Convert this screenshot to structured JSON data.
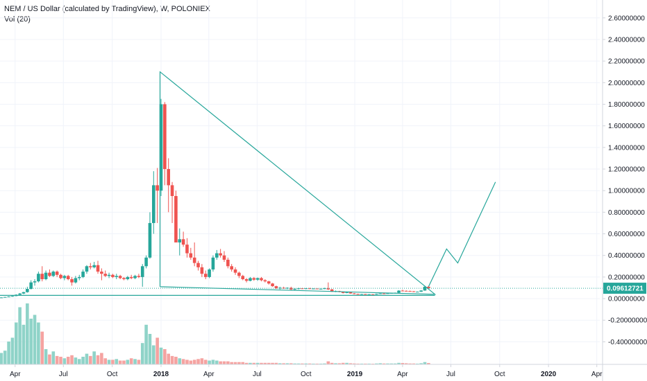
{
  "legend": {
    "title": "NEM / US Dollar (calculated by TradingView), W, POLONIEX",
    "volume": "Vol (20)"
  },
  "colors": {
    "up": "#26a69a",
    "down": "#ef5350",
    "volume_up": "#8fd3c8",
    "volume_down": "#f5a3a1",
    "drawing": "#26a69a",
    "price_line": "#26a69a",
    "grid": "#f0f3fa",
    "axis_text": "#131722"
  },
  "chart_data": {
    "type": "candlestick",
    "symbol": "NEM / US Dollar",
    "interval": "W",
    "exchange": "POLONIEX",
    "ylim": [
      -0.5,
      2.65
    ],
    "y_ticks": [
      "2.60000000",
      "2.40000000",
      "2.20000000",
      "2.00000000",
      "1.80000000",
      "1.60000000",
      "1.40000000",
      "1.20000000",
      "1.00000000",
      "0.80000000",
      "0.60000000",
      "0.40000000",
      "0.20000000",
      "0.00000000",
      "-0.20000000",
      "-0.40000000"
    ],
    "x_labels": [
      {
        "label": "Apr",
        "date": "2017-04-01",
        "bold": false
      },
      {
        "label": "Jul",
        "date": "2017-07-01",
        "bold": false
      },
      {
        "label": "Oct",
        "date": "2017-10-01",
        "bold": false
      },
      {
        "label": "2018",
        "date": "2018-01-01",
        "bold": true
      },
      {
        "label": "Apr",
        "date": "2018-04-01",
        "bold": false
      },
      {
        "label": "Jul",
        "date": "2018-07-01",
        "bold": false
      },
      {
        "label": "Oct",
        "date": "2018-10-01",
        "bold": false
      },
      {
        "label": "2019",
        "date": "2019-01-01",
        "bold": true
      },
      {
        "label": "Apr",
        "date": "2019-04-01",
        "bold": false
      },
      {
        "label": "Jul",
        "date": "2019-07-01",
        "bold": false
      },
      {
        "label": "Oct",
        "date": "2019-10-01",
        "bold": false
      },
      {
        "label": "2020",
        "date": "2020-01-01",
        "bold": true
      },
      {
        "label": "Apr",
        "date": "2020-04-01",
        "bold": false
      }
    ],
    "current_price": "0.09612721",
    "current_price_value": 0.0961,
    "candles": [
      {
        "date": "2017-02-13",
        "o": 0.005,
        "h": 0.006,
        "l": 0.004,
        "c": 0.006,
        "v": 0.06
      },
      {
        "date": "2017-02-20",
        "o": 0.006,
        "h": 0.007,
        "l": 0.005,
        "c": 0.006,
        "v": 0.05
      },
      {
        "date": "2017-02-27",
        "o": 0.006,
        "h": 0.009,
        "l": 0.006,
        "c": 0.008,
        "v": 0.1
      },
      {
        "date": "2017-03-06",
        "o": 0.008,
        "h": 0.012,
        "l": 0.007,
        "c": 0.011,
        "v": 0.15
      },
      {
        "date": "2017-03-13",
        "o": 0.011,
        "h": 0.016,
        "l": 0.01,
        "c": 0.015,
        "v": 0.18
      },
      {
        "date": "2017-03-20",
        "o": 0.015,
        "h": 0.022,
        "l": 0.013,
        "c": 0.019,
        "v": 0.3
      },
      {
        "date": "2017-03-27",
        "o": 0.019,
        "h": 0.028,
        "l": 0.017,
        "c": 0.024,
        "v": 0.35
      },
      {
        "date": "2017-04-03",
        "o": 0.024,
        "h": 0.04,
        "l": 0.022,
        "c": 0.036,
        "v": 0.55
      },
      {
        "date": "2017-04-10",
        "o": 0.036,
        "h": 0.052,
        "l": 0.033,
        "c": 0.047,
        "v": 0.75
      },
      {
        "date": "2017-04-17",
        "o": 0.047,
        "h": 0.063,
        "l": 0.042,
        "c": 0.06,
        "v": 0.52
      },
      {
        "date": "2017-04-24",
        "o": 0.06,
        "h": 0.11,
        "l": 0.055,
        "c": 0.09,
        "v": 0.8
      },
      {
        "date": "2017-05-01",
        "o": 0.09,
        "h": 0.17,
        "l": 0.085,
        "c": 0.15,
        "v": 0.6
      },
      {
        "date": "2017-05-08",
        "o": 0.15,
        "h": 0.18,
        "l": 0.12,
        "c": 0.16,
        "v": 0.65
      },
      {
        "date": "2017-05-15",
        "o": 0.16,
        "h": 0.25,
        "l": 0.15,
        "c": 0.23,
        "v": 0.55
      },
      {
        "date": "2017-05-22",
        "o": 0.23,
        "h": 0.3,
        "l": 0.16,
        "c": 0.18,
        "v": 0.43
      },
      {
        "date": "2017-05-29",
        "o": 0.18,
        "h": 0.26,
        "l": 0.17,
        "c": 0.24,
        "v": 0.2
      },
      {
        "date": "2017-06-05",
        "o": 0.24,
        "h": 0.27,
        "l": 0.2,
        "c": 0.21,
        "v": 0.13
      },
      {
        "date": "2017-06-12",
        "o": 0.21,
        "h": 0.26,
        "l": 0.2,
        "c": 0.25,
        "v": 0.17
      },
      {
        "date": "2017-06-19",
        "o": 0.25,
        "h": 0.26,
        "l": 0.2,
        "c": 0.22,
        "v": 0.11
      },
      {
        "date": "2017-06-26",
        "o": 0.22,
        "h": 0.23,
        "l": 0.18,
        "c": 0.19,
        "v": 0.1
      },
      {
        "date": "2017-07-03",
        "o": 0.19,
        "h": 0.22,
        "l": 0.17,
        "c": 0.21,
        "v": 0.08
      },
      {
        "date": "2017-07-10",
        "o": 0.21,
        "h": 0.22,
        "l": 0.17,
        "c": 0.18,
        "v": 0.1
      },
      {
        "date": "2017-07-17",
        "o": 0.18,
        "h": 0.2,
        "l": 0.12,
        "c": 0.15,
        "v": 0.12
      },
      {
        "date": "2017-07-24",
        "o": 0.15,
        "h": 0.21,
        "l": 0.14,
        "c": 0.19,
        "v": 0.09
      },
      {
        "date": "2017-07-31",
        "o": 0.19,
        "h": 0.22,
        "l": 0.17,
        "c": 0.2,
        "v": 0.07
      },
      {
        "date": "2017-08-07",
        "o": 0.2,
        "h": 0.27,
        "l": 0.19,
        "c": 0.25,
        "v": 0.1
      },
      {
        "date": "2017-08-14",
        "o": 0.25,
        "h": 0.31,
        "l": 0.23,
        "c": 0.3,
        "v": 0.14
      },
      {
        "date": "2017-08-21",
        "o": 0.3,
        "h": 0.33,
        "l": 0.27,
        "c": 0.29,
        "v": 0.11
      },
      {
        "date": "2017-08-28",
        "o": 0.29,
        "h": 0.34,
        "l": 0.28,
        "c": 0.31,
        "v": 0.17
      },
      {
        "date": "2017-09-04",
        "o": 0.31,
        "h": 0.35,
        "l": 0.23,
        "c": 0.25,
        "v": 0.12
      },
      {
        "date": "2017-09-11",
        "o": 0.25,
        "h": 0.28,
        "l": 0.17,
        "c": 0.23,
        "v": 0.15
      },
      {
        "date": "2017-09-18",
        "o": 0.23,
        "h": 0.26,
        "l": 0.2,
        "c": 0.21,
        "v": 0.08
      },
      {
        "date": "2017-09-25",
        "o": 0.21,
        "h": 0.24,
        "l": 0.19,
        "c": 0.22,
        "v": 0.06
      },
      {
        "date": "2017-10-02",
        "o": 0.22,
        "h": 0.23,
        "l": 0.19,
        "c": 0.2,
        "v": 0.06
      },
      {
        "date": "2017-10-09",
        "o": 0.2,
        "h": 0.23,
        "l": 0.18,
        "c": 0.21,
        "v": 0.07
      },
      {
        "date": "2017-10-16",
        "o": 0.21,
        "h": 0.22,
        "l": 0.18,
        "c": 0.19,
        "v": 0.05
      },
      {
        "date": "2017-10-23",
        "o": 0.19,
        "h": 0.2,
        "l": 0.17,
        "c": 0.18,
        "v": 0.05
      },
      {
        "date": "2017-10-30",
        "o": 0.18,
        "h": 0.21,
        "l": 0.17,
        "c": 0.2,
        "v": 0.06
      },
      {
        "date": "2017-11-06",
        "o": 0.2,
        "h": 0.22,
        "l": 0.18,
        "c": 0.19,
        "v": 0.08
      },
      {
        "date": "2017-11-13",
        "o": 0.19,
        "h": 0.22,
        "l": 0.18,
        "c": 0.21,
        "v": 0.07
      },
      {
        "date": "2017-11-20",
        "o": 0.21,
        "h": 0.23,
        "l": 0.19,
        "c": 0.2,
        "v": 0.06
      },
      {
        "date": "2017-11-27",
        "o": 0.2,
        "h": 0.32,
        "l": 0.11,
        "c": 0.3,
        "v": 0.28
      },
      {
        "date": "2017-12-04",
        "o": 0.3,
        "h": 0.4,
        "l": 0.28,
        "c": 0.38,
        "v": 0.52
      },
      {
        "date": "2017-12-11",
        "o": 0.38,
        "h": 0.8,
        "l": 0.37,
        "c": 0.7,
        "v": 0.4
      },
      {
        "date": "2017-12-18",
        "o": 0.7,
        "h": 1.18,
        "l": 0.6,
        "c": 1.05,
        "v": 0.25
      },
      {
        "date": "2017-12-25",
        "o": 1.05,
        "h": 1.21,
        "l": 0.7,
        "c": 1.0,
        "v": 0.35
      },
      {
        "date": "2018-01-01",
        "o": 1.0,
        "h": 1.85,
        "l": 0.95,
        "c": 1.8,
        "v": 0.22
      },
      {
        "date": "2018-01-08",
        "o": 1.8,
        "h": 1.82,
        "l": 1.05,
        "c": 1.2,
        "v": 0.2
      },
      {
        "date": "2018-01-15",
        "o": 1.2,
        "h": 1.3,
        "l": 0.8,
        "c": 1.05,
        "v": 0.14
      },
      {
        "date": "2018-01-22",
        "o": 1.05,
        "h": 1.08,
        "l": 0.7,
        "c": 0.95,
        "v": 0.11
      },
      {
        "date": "2018-01-29",
        "o": 0.95,
        "h": 1.0,
        "l": 0.55,
        "c": 0.52,
        "v": 0.1
      },
      {
        "date": "2018-02-05",
        "o": 0.52,
        "h": 0.65,
        "l": 0.4,
        "c": 0.55,
        "v": 0.08
      },
      {
        "date": "2018-02-12",
        "o": 0.55,
        "h": 0.62,
        "l": 0.48,
        "c": 0.5,
        "v": 0.07
      },
      {
        "date": "2018-02-19",
        "o": 0.5,
        "h": 0.56,
        "l": 0.38,
        "c": 0.42,
        "v": 0.06
      },
      {
        "date": "2018-02-26",
        "o": 0.42,
        "h": 0.47,
        "l": 0.36,
        "c": 0.38,
        "v": 0.05
      },
      {
        "date": "2018-03-05",
        "o": 0.38,
        "h": 0.52,
        "l": 0.3,
        "c": 0.33,
        "v": 0.06
      },
      {
        "date": "2018-03-12",
        "o": 0.33,
        "h": 0.35,
        "l": 0.26,
        "c": 0.29,
        "v": 0.07
      },
      {
        "date": "2018-03-19",
        "o": 0.29,
        "h": 0.32,
        "l": 0.2,
        "c": 0.23,
        "v": 0.08
      },
      {
        "date": "2018-03-26",
        "o": 0.23,
        "h": 0.26,
        "l": 0.18,
        "c": 0.2,
        "v": 0.06
      },
      {
        "date": "2018-04-02",
        "o": 0.2,
        "h": 0.28,
        "l": 0.19,
        "c": 0.27,
        "v": 0.05
      },
      {
        "date": "2018-04-09",
        "o": 0.27,
        "h": 0.4,
        "l": 0.25,
        "c": 0.38,
        "v": 0.06
      },
      {
        "date": "2018-04-16",
        "o": 0.38,
        "h": 0.45,
        "l": 0.36,
        "c": 0.42,
        "v": 0.05
      },
      {
        "date": "2018-04-23",
        "o": 0.42,
        "h": 0.46,
        "l": 0.38,
        "c": 0.4,
        "v": 0.04
      },
      {
        "date": "2018-04-30",
        "o": 0.4,
        "h": 0.44,
        "l": 0.34,
        "c": 0.36,
        "v": 0.04
      },
      {
        "date": "2018-05-07",
        "o": 0.36,
        "h": 0.38,
        "l": 0.28,
        "c": 0.3,
        "v": 0.04
      },
      {
        "date": "2018-05-14",
        "o": 0.3,
        "h": 0.32,
        "l": 0.25,
        "c": 0.27,
        "v": 0.03
      },
      {
        "date": "2018-05-21",
        "o": 0.27,
        "h": 0.29,
        "l": 0.22,
        "c": 0.24,
        "v": 0.03
      },
      {
        "date": "2018-05-28",
        "o": 0.24,
        "h": 0.25,
        "l": 0.19,
        "c": 0.21,
        "v": 0.03
      },
      {
        "date": "2018-06-04",
        "o": 0.21,
        "h": 0.22,
        "l": 0.17,
        "c": 0.18,
        "v": 0.03
      },
      {
        "date": "2018-06-11",
        "o": 0.18,
        "h": 0.19,
        "l": 0.15,
        "c": 0.165,
        "v": 0.02
      },
      {
        "date": "2018-06-18",
        "o": 0.165,
        "h": 0.2,
        "l": 0.16,
        "c": 0.19,
        "v": 0.02
      },
      {
        "date": "2018-06-25",
        "o": 0.19,
        "h": 0.2,
        "l": 0.165,
        "c": 0.175,
        "v": 0.02
      },
      {
        "date": "2018-07-02",
        "o": 0.175,
        "h": 0.195,
        "l": 0.165,
        "c": 0.19,
        "v": 0.02
      },
      {
        "date": "2018-07-09",
        "o": 0.19,
        "h": 0.2,
        "l": 0.16,
        "c": 0.17,
        "v": 0.02
      },
      {
        "date": "2018-07-16",
        "o": 0.17,
        "h": 0.18,
        "l": 0.15,
        "c": 0.16,
        "v": 0.02
      },
      {
        "date": "2018-07-23",
        "o": 0.16,
        "h": 0.165,
        "l": 0.13,
        "c": 0.14,
        "v": 0.02
      },
      {
        "date": "2018-07-30",
        "o": 0.14,
        "h": 0.145,
        "l": 0.11,
        "c": 0.115,
        "v": 0.02
      },
      {
        "date": "2018-08-06",
        "o": 0.115,
        "h": 0.12,
        "l": 0.09,
        "c": 0.095,
        "v": 0.02
      },
      {
        "date": "2018-08-13",
        "o": 0.095,
        "h": 0.11,
        "l": 0.085,
        "c": 0.1,
        "v": 0.015
      },
      {
        "date": "2018-08-20",
        "o": 0.1,
        "h": 0.11,
        "l": 0.09,
        "c": 0.095,
        "v": 0.015
      },
      {
        "date": "2018-08-27",
        "o": 0.095,
        "h": 0.105,
        "l": 0.088,
        "c": 0.1,
        "v": 0.015
      },
      {
        "date": "2018-09-03",
        "o": 0.1,
        "h": 0.11,
        "l": 0.08,
        "c": 0.085,
        "v": 0.015
      },
      {
        "date": "2018-09-10",
        "o": 0.085,
        "h": 0.095,
        "l": 0.08,
        "c": 0.09,
        "v": 0.012
      },
      {
        "date": "2018-09-17",
        "o": 0.09,
        "h": 0.1,
        "l": 0.085,
        "c": 0.095,
        "v": 0.012
      },
      {
        "date": "2018-09-24",
        "o": 0.095,
        "h": 0.1,
        "l": 0.088,
        "c": 0.092,
        "v": 0.012
      },
      {
        "date": "2018-10-01",
        "o": 0.092,
        "h": 0.098,
        "l": 0.088,
        "c": 0.095,
        "v": 0.012
      },
      {
        "date": "2018-10-08",
        "o": 0.095,
        "h": 0.1,
        "l": 0.088,
        "c": 0.09,
        "v": 0.012
      },
      {
        "date": "2018-10-15",
        "o": 0.09,
        "h": 0.095,
        "l": 0.087,
        "c": 0.093,
        "v": 0.01
      },
      {
        "date": "2018-10-22",
        "o": 0.093,
        "h": 0.095,
        "l": 0.088,
        "c": 0.09,
        "v": 0.01
      },
      {
        "date": "2018-10-29",
        "o": 0.09,
        "h": 0.094,
        "l": 0.086,
        "c": 0.091,
        "v": 0.01
      },
      {
        "date": "2018-11-05",
        "o": 0.091,
        "h": 0.1,
        "l": 0.088,
        "c": 0.095,
        "v": 0.012
      },
      {
        "date": "2018-11-12",
        "o": 0.095,
        "h": 0.15,
        "l": 0.08,
        "c": 0.085,
        "v": 0.04
      },
      {
        "date": "2018-11-19",
        "o": 0.085,
        "h": 0.09,
        "l": 0.062,
        "c": 0.068,
        "v": 0.02
      },
      {
        "date": "2018-11-26",
        "o": 0.068,
        "h": 0.075,
        "l": 0.06,
        "c": 0.07,
        "v": 0.015
      },
      {
        "date": "2018-12-03",
        "o": 0.07,
        "h": 0.072,
        "l": 0.058,
        "c": 0.062,
        "v": 0.015
      },
      {
        "date": "2018-12-10",
        "o": 0.062,
        "h": 0.064,
        "l": 0.048,
        "c": 0.052,
        "v": 0.02
      },
      {
        "date": "2018-12-17",
        "o": 0.052,
        "h": 0.065,
        "l": 0.05,
        "c": 0.06,
        "v": 0.02
      },
      {
        "date": "2018-12-24",
        "o": 0.06,
        "h": 0.062,
        "l": 0.045,
        "c": 0.048,
        "v": 0.015
      },
      {
        "date": "2018-12-31",
        "o": 0.048,
        "h": 0.052,
        "l": 0.04,
        "c": 0.043,
        "v": 0.012
      },
      {
        "date": "2019-01-07",
        "o": 0.043,
        "h": 0.046,
        "l": 0.038,
        "c": 0.04,
        "v": 0.01
      },
      {
        "date": "2019-01-14",
        "o": 0.04,
        "h": 0.044,
        "l": 0.038,
        "c": 0.042,
        "v": 0.01
      },
      {
        "date": "2019-01-21",
        "o": 0.042,
        "h": 0.044,
        "l": 0.037,
        "c": 0.039,
        "v": 0.01
      },
      {
        "date": "2019-01-28",
        "o": 0.039,
        "h": 0.042,
        "l": 0.036,
        "c": 0.04,
        "v": 0.01
      },
      {
        "date": "2019-02-04",
        "o": 0.04,
        "h": 0.042,
        "l": 0.036,
        "c": 0.038,
        "v": 0.009
      },
      {
        "date": "2019-02-11",
        "o": 0.038,
        "h": 0.046,
        "l": 0.037,
        "c": 0.044,
        "v": 0.012
      },
      {
        "date": "2019-02-18",
        "o": 0.044,
        "h": 0.05,
        "l": 0.042,
        "c": 0.048,
        "v": 0.015
      },
      {
        "date": "2019-02-25",
        "o": 0.048,
        "h": 0.05,
        "l": 0.044,
        "c": 0.046,
        "v": 0.012
      },
      {
        "date": "2019-03-04",
        "o": 0.046,
        "h": 0.052,
        "l": 0.045,
        "c": 0.05,
        "v": 0.012
      },
      {
        "date": "2019-03-11",
        "o": 0.05,
        "h": 0.054,
        "l": 0.048,
        "c": 0.052,
        "v": 0.012
      },
      {
        "date": "2019-03-18",
        "o": 0.052,
        "h": 0.056,
        "l": 0.05,
        "c": 0.054,
        "v": 0.012
      },
      {
        "date": "2019-03-25",
        "o": 0.054,
        "h": 0.078,
        "l": 0.052,
        "c": 0.074,
        "v": 0.02
      },
      {
        "date": "2019-04-01",
        "o": 0.074,
        "h": 0.082,
        "l": 0.068,
        "c": 0.072,
        "v": 0.018
      },
      {
        "date": "2019-04-08",
        "o": 0.072,
        "h": 0.076,
        "l": 0.066,
        "c": 0.07,
        "v": 0.015
      },
      {
        "date": "2019-04-15",
        "o": 0.07,
        "h": 0.074,
        "l": 0.066,
        "c": 0.068,
        "v": 0.012
      },
      {
        "date": "2019-04-22",
        "o": 0.068,
        "h": 0.07,
        "l": 0.06,
        "c": 0.062,
        "v": 0.012
      },
      {
        "date": "2019-04-29",
        "o": 0.062,
        "h": 0.066,
        "l": 0.058,
        "c": 0.064,
        "v": 0.01
      },
      {
        "date": "2019-05-06",
        "o": 0.064,
        "h": 0.078,
        "l": 0.062,
        "c": 0.075,
        "v": 0.015
      },
      {
        "date": "2019-05-13",
        "o": 0.075,
        "h": 0.12,
        "l": 0.072,
        "c": 0.11,
        "v": 0.03
      },
      {
        "date": "2019-05-20",
        "o": 0.11,
        "h": 0.118,
        "l": 0.09,
        "c": 0.096,
        "v": 0.018
      }
    ],
    "volume_ylim": [
      0,
      1.0
    ],
    "drawings": {
      "triangle": {
        "apex": {
          "date": "2017-12-30",
          "value": 2.1
        },
        "bottom_left": {
          "date": "2017-12-30",
          "value": 0.11
        },
        "right_tip": {
          "date": "2019-06-01",
          "value": 0.04
        }
      },
      "support": {
        "start": {
          "date": "2017-02-06",
          "value": 0.03
        },
        "end": {
          "date": "2019-06-01",
          "value": 0.03
        }
      },
      "projection": [
        {
          "date": "2019-05-20",
          "value": 0.11
        },
        {
          "date": "2019-06-23",
          "value": 0.46
        },
        {
          "date": "2019-07-14",
          "value": 0.33
        },
        {
          "date": "2019-09-23",
          "value": 1.08
        }
      ]
    }
  }
}
